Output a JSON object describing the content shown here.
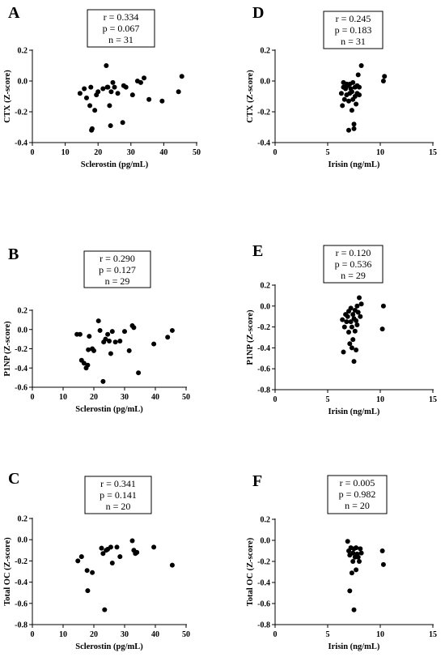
{
  "chart_data": [
    {
      "panel": "A",
      "type": "scatter",
      "xlabel": "Sclerostin (pg/mL)",
      "ylabel": "CTX (Z-score)",
      "xlim": [
        0,
        50
      ],
      "ylim": [
        -0.4,
        0.2
      ],
      "xticks": [
        0,
        10,
        20,
        30,
        40,
        50
      ],
      "yticks": [
        -0.4,
        -0.2,
        0.0,
        0.2
      ],
      "stats": [
        "r = 0.334",
        "p  = 0.067",
        "n = 31"
      ],
      "points": [
        [
          14.5,
          -0.08
        ],
        [
          15.8,
          -0.05
        ],
        [
          16.5,
          -0.11
        ],
        [
          17.8,
          -0.04
        ],
        [
          17.5,
          -0.16
        ],
        [
          18.2,
          -0.31
        ],
        [
          18.0,
          -0.32
        ],
        [
          19.0,
          -0.19
        ],
        [
          19.5,
          -0.09
        ],
        [
          20.0,
          -0.07
        ],
        [
          21.5,
          -0.05
        ],
        [
          22.5,
          0.1
        ],
        [
          22.8,
          -0.04
        ],
        [
          23.0,
          -0.04
        ],
        [
          23.5,
          -0.16
        ],
        [
          24.0,
          -0.07
        ],
        [
          23.8,
          -0.29
        ],
        [
          24.5,
          -0.01
        ],
        [
          25.0,
          -0.04
        ],
        [
          26.0,
          -0.08
        ],
        [
          27.5,
          -0.27
        ],
        [
          27.8,
          -0.03
        ],
        [
          28.5,
          -0.04
        ],
        [
          30.5,
          -0.09
        ],
        [
          32.0,
          0.0
        ],
        [
          33.0,
          -0.01
        ],
        [
          34.0,
          0.02
        ],
        [
          35.5,
          -0.12
        ],
        [
          39.5,
          -0.13
        ],
        [
          44.5,
          -0.07
        ],
        [
          45.5,
          0.03
        ]
      ]
    },
    {
      "panel": "B",
      "type": "scatter",
      "xlabel": "Sclerostin (pg/mL)",
      "ylabel": "P1NP (Z-score)",
      "xlim": [
        0,
        50
      ],
      "ylim": [
        -0.6,
        0.2
      ],
      "xticks": [
        0,
        10,
        20,
        30,
        40,
        50
      ],
      "yticks": [
        -0.6,
        -0.4,
        -0.2,
        0.0,
        0.2
      ],
      "stats": [
        "r = 0.290",
        "p  = 0.127",
        "n = 29"
      ],
      "points": [
        [
          14.5,
          -0.05
        ],
        [
          15.5,
          -0.05
        ],
        [
          16.0,
          -0.32
        ],
        [
          16.8,
          -0.35
        ],
        [
          17.5,
          -0.4
        ],
        [
          18.0,
          -0.37
        ],
        [
          18.2,
          -0.21
        ],
        [
          18.5,
          -0.07
        ],
        [
          19.5,
          -0.2
        ],
        [
          20.0,
          -0.22
        ],
        [
          21.5,
          0.09
        ],
        [
          22.0,
          -0.01
        ],
        [
          23.0,
          -0.54
        ],
        [
          23.2,
          -0.13
        ],
        [
          23.8,
          -0.1
        ],
        [
          24.5,
          -0.05
        ],
        [
          25.0,
          -0.12
        ],
        [
          25.5,
          -0.25
        ],
        [
          26.0,
          -0.02
        ],
        [
          27.0,
          -0.13
        ],
        [
          28.5,
          -0.12
        ],
        [
          30.0,
          -0.02
        ],
        [
          31.5,
          -0.22
        ],
        [
          32.5,
          0.04
        ],
        [
          33.0,
          0.02
        ],
        [
          34.5,
          -0.45
        ],
        [
          39.5,
          -0.15
        ],
        [
          44.0,
          -0.08
        ],
        [
          45.5,
          -0.01
        ]
      ]
    },
    {
      "panel": "C",
      "type": "scatter",
      "xlabel": "Sclerostin (pg/mL)",
      "ylabel": "Total OC (Z-score)",
      "xlim": [
        0,
        50
      ],
      "ylim": [
        -0.8,
        0.2
      ],
      "xticks": [
        0,
        10,
        20,
        30,
        40,
        50
      ],
      "yticks": [
        -0.8,
        -0.6,
        -0.4,
        -0.2,
        0.0,
        0.2
      ],
      "stats": [
        "r = 0.341",
        "p  = 0.141",
        "n = 20"
      ],
      "points": [
        [
          14.8,
          -0.2
        ],
        [
          16.0,
          -0.16
        ],
        [
          17.8,
          -0.29
        ],
        [
          18.0,
          -0.48
        ],
        [
          19.5,
          -0.31
        ],
        [
          22.5,
          -0.08
        ],
        [
          23.0,
          -0.13
        ],
        [
          23.5,
          -0.66
        ],
        [
          24.0,
          -0.1
        ],
        [
          24.5,
          -0.09
        ],
        [
          25.5,
          -0.07
        ],
        [
          26.0,
          -0.22
        ],
        [
          27.5,
          -0.07
        ],
        [
          28.5,
          -0.16
        ],
        [
          32.5,
          -0.01
        ],
        [
          33.0,
          -0.1
        ],
        [
          33.5,
          -0.13
        ],
        [
          34.0,
          -0.12
        ],
        [
          39.5,
          -0.07
        ],
        [
          45.5,
          -0.24
        ]
      ]
    },
    {
      "panel": "D",
      "type": "scatter",
      "xlabel": "Irisin (ng/mL)",
      "ylabel": "CTX (Z-score)",
      "xlim": [
        0,
        15
      ],
      "ylim": [
        -0.4,
        0.2
      ],
      "xticks": [
        0,
        5,
        10,
        15
      ],
      "yticks": [
        -0.4,
        -0.2,
        0.0,
        0.2
      ],
      "stats": [
        "r = 0.245",
        "p  = 0.183",
        "n = 31"
      ],
      "points": [
        [
          6.3,
          -0.08
        ],
        [
          6.4,
          -0.16
        ],
        [
          6.5,
          -0.01
        ],
        [
          6.5,
          -0.04
        ],
        [
          6.6,
          -0.12
        ],
        [
          6.7,
          -0.05
        ],
        [
          6.8,
          -0.02
        ],
        [
          6.8,
          -0.09
        ],
        [
          6.9,
          -0.03
        ],
        [
          7.0,
          -0.13
        ],
        [
          7.0,
          -0.32
        ],
        [
          7.1,
          -0.08
        ],
        [
          7.1,
          -0.02
        ],
        [
          7.2,
          -0.05
        ],
        [
          7.3,
          -0.19
        ],
        [
          7.3,
          -0.07
        ],
        [
          7.4,
          -0.12
        ],
        [
          7.4,
          -0.01
        ],
        [
          7.5,
          -0.31
        ],
        [
          7.5,
          -0.28
        ],
        [
          7.6,
          -0.1
        ],
        [
          7.6,
          -0.04
        ],
        [
          7.7,
          -0.15
        ],
        [
          7.8,
          -0.08
        ],
        [
          7.8,
          -0.03
        ],
        [
          7.9,
          0.04
        ],
        [
          8.0,
          -0.09
        ],
        [
          8.0,
          -0.04
        ],
        [
          8.2,
          0.1
        ],
        [
          10.3,
          0.0
        ],
        [
          10.4,
          0.03
        ]
      ]
    },
    {
      "panel": "E",
      "type": "scatter",
      "xlabel": "Irisin (ng/mL)",
      "ylabel": "P1NP (Z-score)",
      "xlim": [
        0,
        15
      ],
      "ylim": [
        -0.8,
        0.2
      ],
      "xticks": [
        0,
        5,
        10,
        15
      ],
      "yticks": [
        -0.8,
        -0.6,
        -0.4,
        -0.2,
        0.0,
        0.2
      ],
      "stats": [
        "r = 0.120",
        "p  = 0.536",
        "n = 29"
      ],
      "points": [
        [
          6.4,
          -0.13
        ],
        [
          6.5,
          -0.44
        ],
        [
          6.6,
          -0.2
        ],
        [
          6.7,
          -0.08
        ],
        [
          6.8,
          -0.15
        ],
        [
          6.9,
          -0.1
        ],
        [
          7.0,
          -0.05
        ],
        [
          7.0,
          -0.25
        ],
        [
          7.1,
          -0.36
        ],
        [
          7.2,
          -0.02
        ],
        [
          7.2,
          -0.15
        ],
        [
          7.3,
          -0.4
        ],
        [
          7.3,
          -0.2
        ],
        [
          7.4,
          -0.08
        ],
        [
          7.4,
          -0.32
        ],
        [
          7.5,
          -0.53
        ],
        [
          7.5,
          -0.12
        ],
        [
          7.6,
          -0.04
        ],
        [
          7.6,
          -0.24
        ],
        [
          7.7,
          -0.42
        ],
        [
          7.7,
          -0.14
        ],
        [
          7.8,
          0.0
        ],
        [
          7.8,
          -0.18
        ],
        [
          7.9,
          -0.06
        ],
        [
          8.0,
          0.08
        ],
        [
          8.1,
          -0.1
        ],
        [
          8.2,
          0.02
        ],
        [
          10.2,
          -0.22
        ],
        [
          10.3,
          0.0
        ]
      ]
    },
    {
      "panel": "F",
      "type": "scatter",
      "xlabel": "Irisin (ng/mL)",
      "ylabel": "Total OC (Z-score)",
      "xlim": [
        0,
        15
      ],
      "ylim": [
        -0.8,
        0.2
      ],
      "xticks": [
        0,
        5,
        10,
        15
      ],
      "yticks": [
        -0.8,
        -0.6,
        -0.4,
        -0.2,
        0.0,
        0.2
      ],
      "stats": [
        "r = 0.005",
        "p  = 0.982",
        "n = 20"
      ],
      "points": [
        [
          6.9,
          -0.01
        ],
        [
          7.0,
          -0.1
        ],
        [
          7.1,
          -0.48
        ],
        [
          7.1,
          -0.14
        ],
        [
          7.2,
          -0.07
        ],
        [
          7.3,
          -0.31
        ],
        [
          7.4,
          -0.2
        ],
        [
          7.4,
          -0.12
        ],
        [
          7.5,
          -0.66
        ],
        [
          7.5,
          -0.08
        ],
        [
          7.6,
          -0.16
        ],
        [
          7.7,
          -0.28
        ],
        [
          7.7,
          -0.07
        ],
        [
          7.8,
          -0.13
        ],
        [
          7.9,
          -0.16
        ],
        [
          8.0,
          -0.2
        ],
        [
          8.1,
          -0.08
        ],
        [
          8.2,
          -0.12
        ],
        [
          10.2,
          -0.1
        ],
        [
          10.3,
          -0.23
        ]
      ]
    }
  ],
  "colors": {
    "marker": "#000000",
    "axis": "#000000",
    "background": "#ffffff"
  }
}
